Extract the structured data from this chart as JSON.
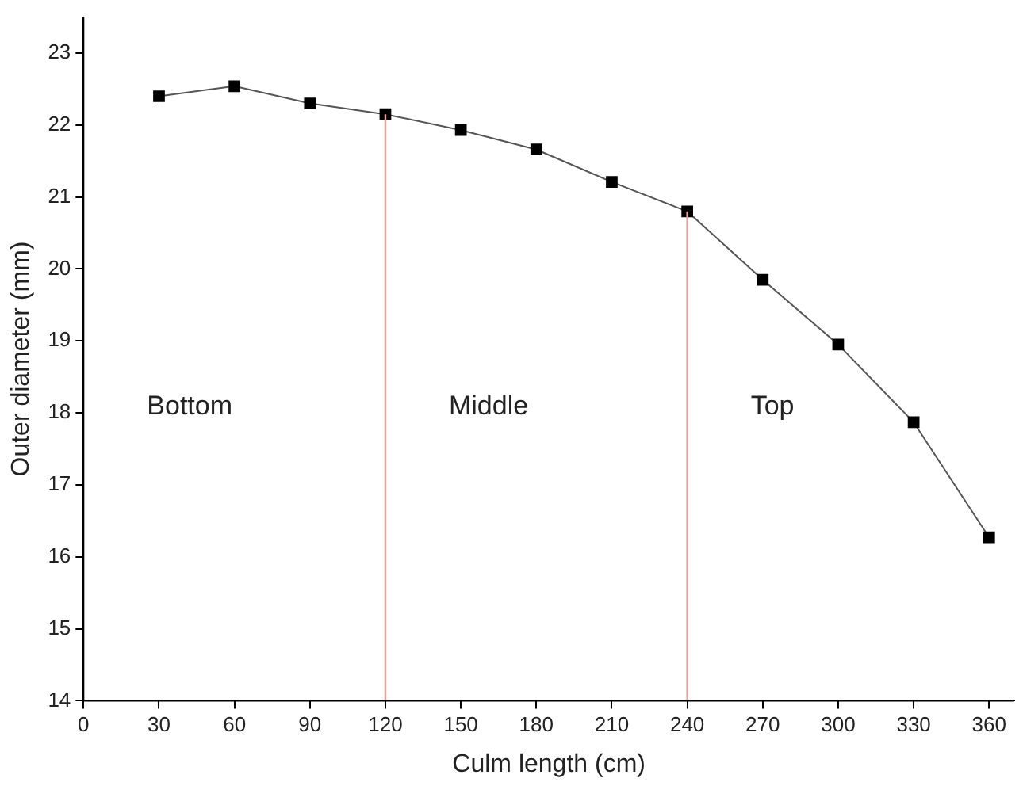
{
  "chart_data": {
    "type": "line",
    "xlabel": "Culm length (cm)",
    "ylabel": "Outer diameter (mm)",
    "x": [
      30,
      60,
      90,
      120,
      150,
      180,
      210,
      240,
      270,
      300,
      330,
      360
    ],
    "series": [
      {
        "color": "#000000",
        "values": [
          22.4,
          22.54,
          22.3,
          22.15,
          21.93,
          21.66,
          21.21,
          20.8,
          19.85,
          18.95,
          17.87,
          16.27
        ]
      }
    ],
    "xlim": [
      0,
      370
    ],
    "xticks": [
      0,
      30,
      60,
      90,
      120,
      150,
      180,
      210,
      240,
      270,
      300,
      330,
      360
    ],
    "ylim": [
      14,
      23.5
    ],
    "yticks": [
      14,
      15,
      16,
      17,
      18,
      19,
      20,
      21,
      22,
      23
    ],
    "grid": false,
    "legend": false,
    "marker": "square",
    "line_style": "solid",
    "ref_lines": [
      {
        "axis": "x",
        "value": 120,
        "color": "#e8a0a0"
      },
      {
        "axis": "x",
        "value": 240,
        "color": "#e8a0a0"
      }
    ],
    "annotations": [
      "Bottom",
      "Middle",
      "Top"
    ]
  }
}
